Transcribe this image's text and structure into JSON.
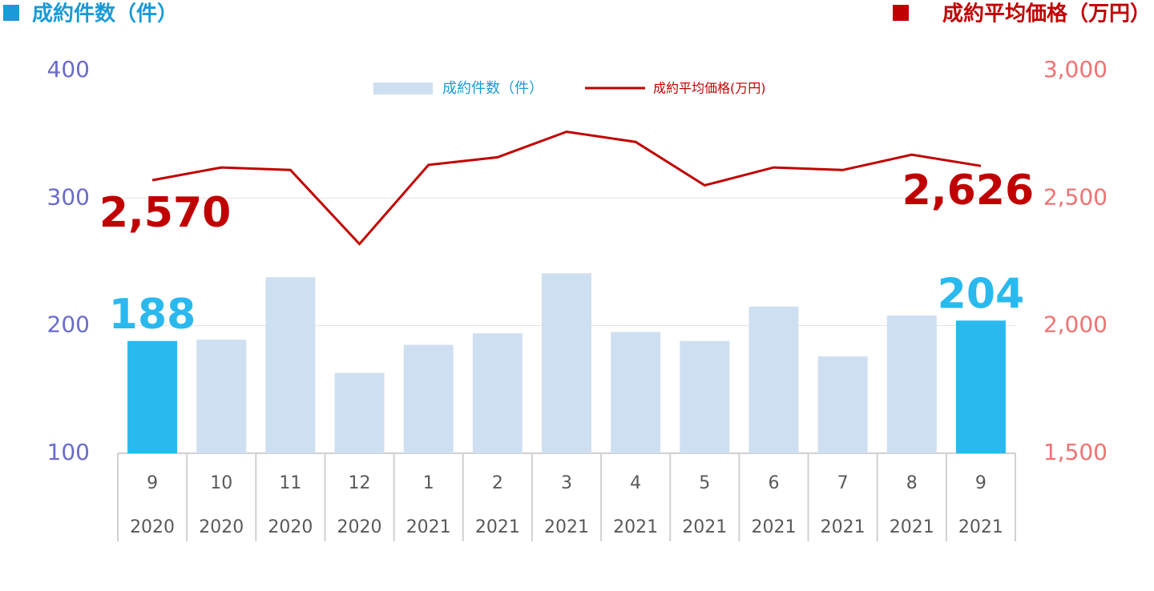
{
  "chart_data": {
    "type": "bar-line",
    "y_label": "成約件数（件）",
    "y2_label": "成約平均価格（万円）",
    "categories": [
      [
        "9",
        "2020"
      ],
      [
        "10",
        "2020"
      ],
      [
        "11",
        "2020"
      ],
      [
        "12",
        "2020"
      ],
      [
        "1",
        "2021"
      ],
      [
        "2",
        "2021"
      ],
      [
        "3",
        "2021"
      ],
      [
        "4",
        "2021"
      ],
      [
        "5",
        "2021"
      ],
      [
        "6",
        "2021"
      ],
      [
        "7",
        "2021"
      ],
      [
        "8",
        "2021"
      ],
      [
        "9",
        "2021"
      ]
    ],
    "series": [
      {
        "name": "成約件数（件）",
        "type": "bar",
        "color": "#cfdff2",
        "colors": [
          "#29b9ef",
          "#cfdff2",
          "#cfdff2",
          "#cfdff2",
          "#cfdff2",
          "#cfdff2",
          "#cfdff2",
          "#cfdff2",
          "#cfdff2",
          "#cfdff2",
          "#cfdff2",
          "#cfdff2",
          "#29b9ef"
        ],
        "values": [
          188,
          189,
          238,
          163,
          185,
          194,
          241,
          195,
          188,
          215,
          176,
          208,
          204
        ],
        "value_labels": [
          "188",
          null,
          null,
          null,
          null,
          null,
          null,
          null,
          null,
          null,
          null,
          null,
          "204"
        ]
      },
      {
        "name": "成約平均価格(万円)",
        "type": "line",
        "axis": "y2",
        "color": "#c00000",
        "values": [
          2570,
          2620,
          2610,
          2320,
          2630,
          2660,
          2760,
          2720,
          2550,
          2620,
          2610,
          2670,
          2626
        ],
        "value_labels": [
          "2,570",
          null,
          null,
          null,
          null,
          null,
          null,
          null,
          null,
          null,
          null,
          null,
          "2,626"
        ]
      }
    ],
    "ylim": [
      100,
      400
    ],
    "yticks": [
      100,
      200,
      300,
      400
    ],
    "y2lim": [
      1500,
      3000
    ],
    "y2ticks": [
      {
        "value": 1500,
        "label": "1,500"
      },
      {
        "value": 2000,
        "label": "2,000"
      },
      {
        "value": 2500,
        "label": "2,500"
      },
      {
        "value": 3000,
        "label": "3,000"
      }
    ],
    "y_color": "#6b6bcc",
    "y2_color": "#f07272",
    "grid": true
  }
}
